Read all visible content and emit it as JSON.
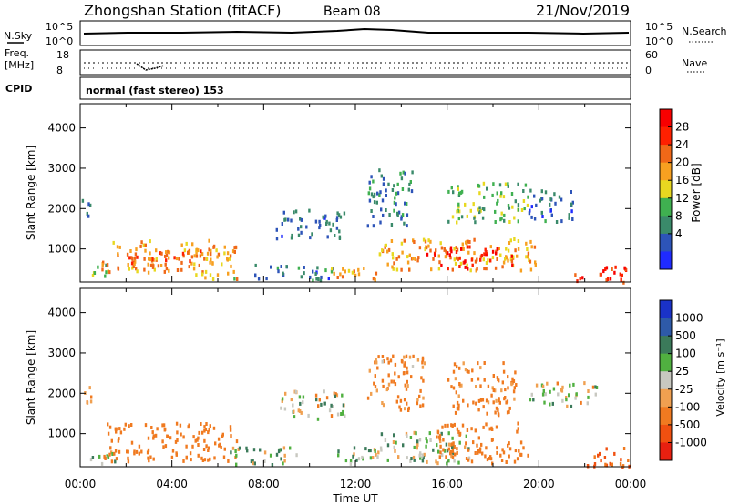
{
  "header": {
    "station": "Zhongshan Station (fitACF)",
    "beam": "Beam 08",
    "date": "21/Nov/2019"
  },
  "top_panels": {
    "left_label_1": "N.Sky",
    "right_label_1": "N.Search",
    "left_label_2_line1": "Freq.",
    "left_label_2_line2": "[MHz]",
    "right_label_2": "Nave",
    "cpid_label": "CPID",
    "cpid_text": "normal (fast stereo) 153",
    "nsky_ticks_left": [
      "10^5",
      "10^0"
    ],
    "nsearch_ticks_right": [
      "10^5",
      "10^0"
    ],
    "freq_ticks_left": [
      "18",
      "8"
    ],
    "nave_ticks_right": [
      "60",
      "0"
    ]
  },
  "axes": {
    "x_label": "Time UT",
    "x_ticks": [
      "00:00",
      "04:00",
      "08:00",
      "12:00",
      "16:00",
      "20:00",
      "00:00"
    ],
    "y_label": "Slant Range [km]",
    "y_ticks": [
      "4000",
      "3000",
      "2000",
      "1000"
    ]
  },
  "power_scale": {
    "label": "Power [dB]",
    "ticks": [
      "28",
      "24",
      "20",
      "16",
      "12",
      "8",
      "4"
    ],
    "colors": [
      "#1f2bff",
      "#2d54b8",
      "#3a8a6a",
      "#3fb050",
      "#e8d820",
      "#f7a020",
      "#f06818",
      "#ff2000",
      "#f80000"
    ]
  },
  "velocity_scale": {
    "label": "Velocity [m s⁻¹]",
    "ticks": [
      "1000",
      "500",
      "100",
      "25",
      "-25",
      "-100",
      "-500",
      "-1000"
    ],
    "colors": [
      "#1a32c8",
      "#2e5aa8",
      "#3b7a5a",
      "#50b040",
      "#c8c8c0",
      "#f0a050",
      "#f07a20",
      "#f05010",
      "#e82010"
    ]
  },
  "chart_data": [
    {
      "type": "heatmap",
      "title": "Power",
      "xlabel": "Time UT",
      "ylabel": "Slant Range [km]",
      "xlim": [
        0,
        24
      ],
      "ylim": [
        180,
        4600
      ],
      "colorbar": {
        "label": "Power [dB]",
        "range": [
          0,
          32
        ]
      },
      "blobs": [
        {
          "t0": 0.0,
          "t1": 0.4,
          "r0": 1750,
          "r1": 2300,
          "v": 6
        },
        {
          "t0": 0.3,
          "t1": 1.2,
          "r0": 300,
          "r1": 700,
          "v": 14
        },
        {
          "t0": 0.9,
          "t1": 6.8,
          "r0": 450,
          "r1": 1250,
          "v": 20
        },
        {
          "t0": 2.0,
          "t1": 5.5,
          "r0": 600,
          "r1": 1000,
          "v": 24
        },
        {
          "t0": 5.0,
          "t1": 7.0,
          "r0": 250,
          "r1": 450,
          "v": 18
        },
        {
          "t0": 7.5,
          "t1": 11.0,
          "r0": 250,
          "r1": 650,
          "v": 8
        },
        {
          "t0": 8.5,
          "t1": 11.5,
          "r0": 1300,
          "r1": 2000,
          "v": 6
        },
        {
          "t0": 10.8,
          "t1": 13.0,
          "r0": 250,
          "r1": 600,
          "v": 22
        },
        {
          "t0": 12.5,
          "t1": 14.5,
          "r0": 1600,
          "r1": 3000,
          "v": 8
        },
        {
          "t0": 13.0,
          "t1": 20.0,
          "r0": 500,
          "r1": 1300,
          "v": 20
        },
        {
          "t0": 15.0,
          "t1": 18.8,
          "r0": 550,
          "r1": 1100,
          "v": 27
        },
        {
          "t0": 16.0,
          "t1": 19.5,
          "r0": 1700,
          "r1": 2700,
          "v": 13
        },
        {
          "t0": 19.5,
          "t1": 21.5,
          "r0": 1700,
          "r1": 2500,
          "v": 7
        },
        {
          "t0": 21.5,
          "t1": 24.0,
          "r0": 200,
          "r1": 600,
          "v": 26
        }
      ]
    },
    {
      "type": "heatmap",
      "title": "Velocity",
      "xlabel": "Time UT",
      "ylabel": "Slant Range [km]",
      "xlim": [
        0,
        24
      ],
      "ylim": [
        180,
        4600
      ],
      "colorbar": {
        "label": "Velocity [m s⁻¹]",
        "range": [
          -1000,
          1000
        ]
      },
      "blobs": [
        {
          "t0": 0.0,
          "t1": 0.5,
          "r0": 1800,
          "r1": 2300,
          "v": -150
        },
        {
          "t0": 0.3,
          "t1": 1.5,
          "r0": 250,
          "r1": 700,
          "v": 80
        },
        {
          "t0": 1.0,
          "t1": 6.8,
          "r0": 350,
          "r1": 1300,
          "v": -300
        },
        {
          "t0": 6.5,
          "t1": 9.5,
          "r0": 250,
          "r1": 700,
          "v": 60
        },
        {
          "t0": 8.5,
          "t1": 11.5,
          "r0": 1400,
          "r1": 2100,
          "v": 0
        },
        {
          "t0": 11.0,
          "t1": 13.0,
          "r0": 200,
          "r1": 700,
          "v": 80
        },
        {
          "t0": 12.5,
          "t1": 15.0,
          "r0": 1600,
          "r1": 3000,
          "v": -150
        },
        {
          "t0": 13.0,
          "t1": 17.0,
          "r0": 300,
          "r1": 1100,
          "v": 40
        },
        {
          "t0": 15.5,
          "t1": 19.5,
          "r0": 300,
          "r1": 1300,
          "v": -350
        },
        {
          "t0": 16.0,
          "t1": 19.0,
          "r0": 1500,
          "r1": 2800,
          "v": -200
        },
        {
          "t0": 19.5,
          "t1": 22.5,
          "r0": 1700,
          "r1": 2300,
          "v": 0
        },
        {
          "t0": 22.0,
          "t1": 24.0,
          "r0": 200,
          "r1": 700,
          "v": -600
        }
      ]
    }
  ]
}
